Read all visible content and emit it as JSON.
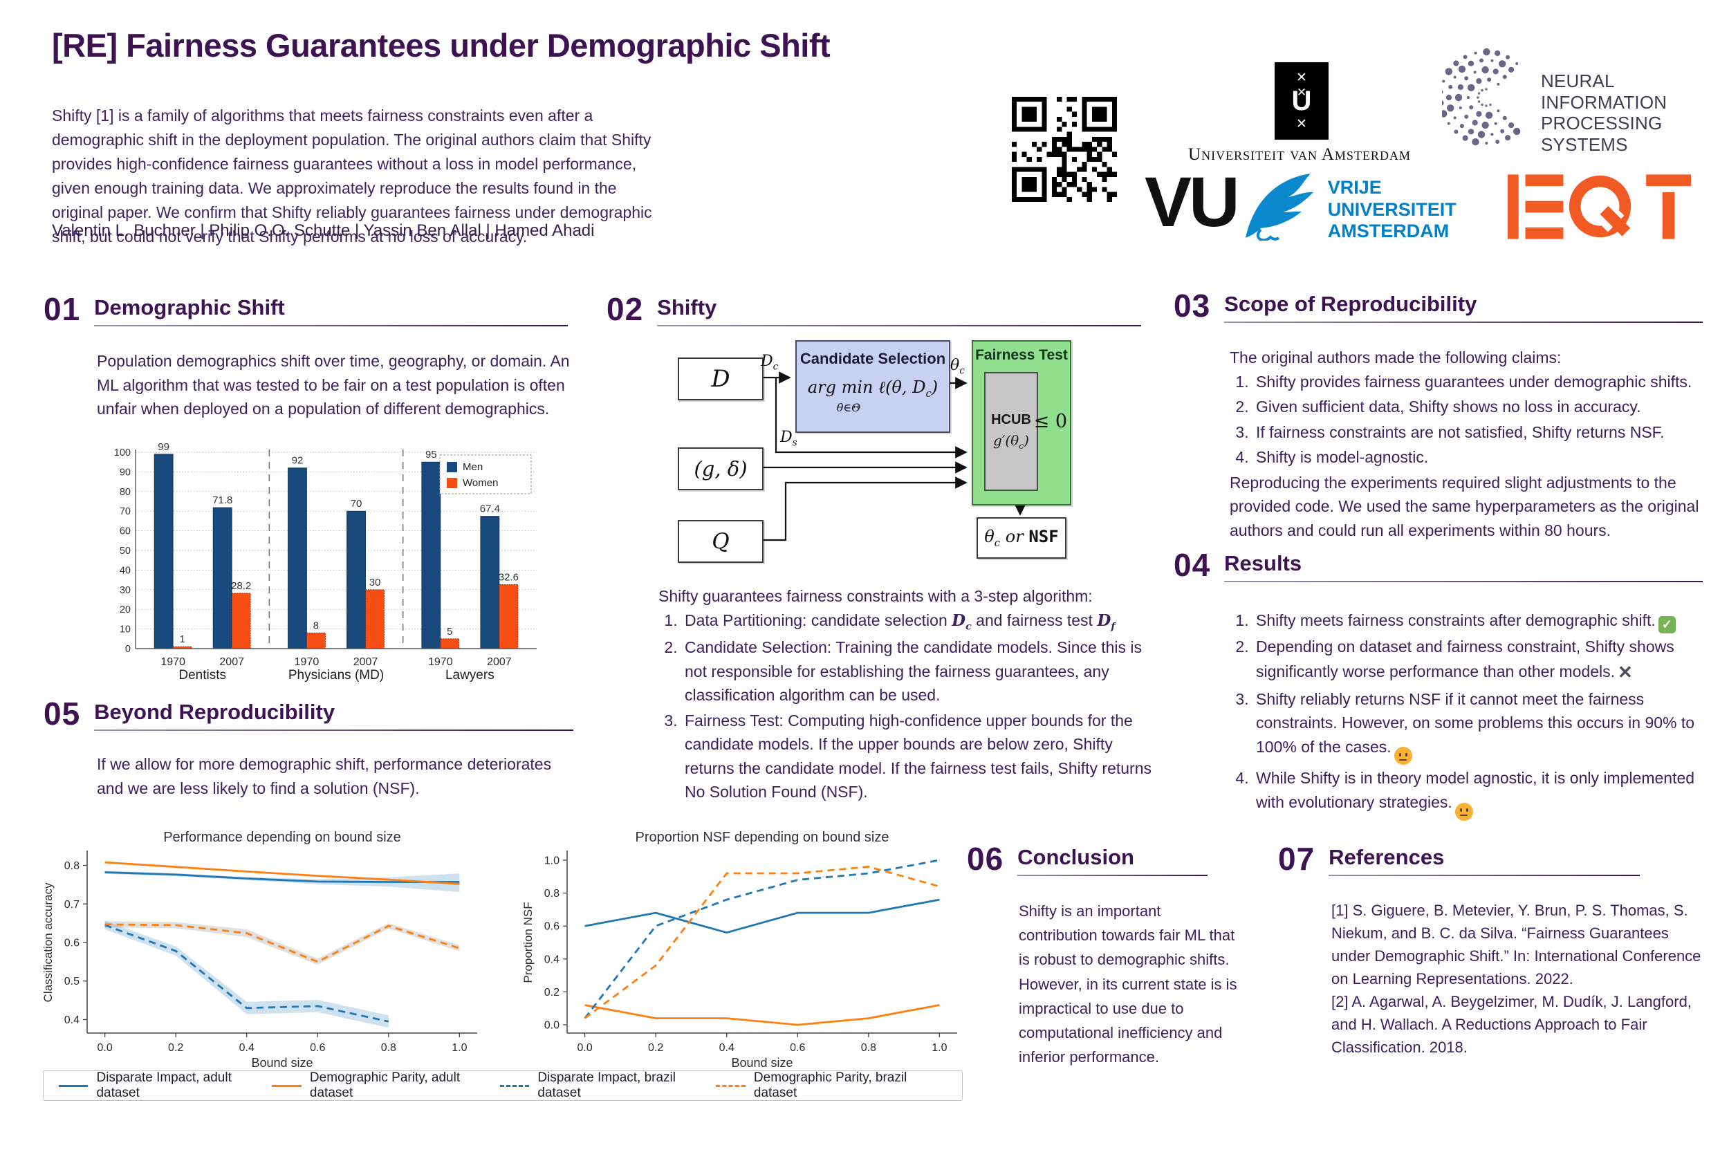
{
  "header": {
    "title": "[RE] Fairness Guarantees under Demographic Shift",
    "abstract": "Shifty [1] is a family of algorithms that meets fairness constraints even after a demographic shift in the deployment population. The original authors claim that Shifty provides high-confidence fairness guarantees without a loss in model performance, given enough training data. We approximately reproduce the results found in the original paper. We confirm that Shifty reliably guarantees fairness under demographic shift, but could not verify that Shifty performs at no loss of accuracy.",
    "authors": "Valentin L. Buchner | Philip O.O. Schutte | Yassin Ben Allal | Hamed Ahadi",
    "logos": {
      "uva_glyph_x": "✕",
      "uva_glyph_u": "U",
      "uva_caption": "Universiteit van Amsterdam",
      "neurips_line1": "NEURAL INFORMATION",
      "neurips_line2": "PROCESSING SYSTEMS",
      "vu_letters": "VU",
      "vu_line1": "VRIJE",
      "vu_line2": "UNIVERSITEIT",
      "vu_line3": "AMSTERDAM",
      "vu_blue": "#0080c9",
      "eqt_orange": "#f15a22",
      "neurips_purple": "#5e5880"
    }
  },
  "accent_color": "#3d1152",
  "sections": {
    "s1": {
      "number": "01",
      "title": "Demographic Shift",
      "body": "Population demographics shift over time, geography, or domain. An ML algorithm that was tested to be fair on a test population  is often unfair when deployed on a population of different demographics."
    },
    "s2": {
      "number": "02",
      "title": "Shifty",
      "intro": "Shifty guarantees fairness constraints with a 3-step algorithm:",
      "item1_pre": "Data Partitioning: candidate selection ",
      "item1_var1": "D",
      "item1_sub1": "c",
      "item1_mid": " and fairness test ",
      "item1_var2": "D",
      "item1_sub2": "f",
      "item2": "Candidate Selection: Training the candidate models. Since this is not responsible for establishing the fairness guarantees, any classification algorithm can be used.",
      "item3": "Fairness Test: Computing high-confidence upper bounds for the candidate models. If the upper bounds are below zero, Shifty returns the candidate model. If the fairness test fails, Shifty returns No Solution Found (NSF)."
    },
    "s3": {
      "number": "03",
      "title": "Scope of Reproducibility",
      "intro": "The original authors made the following claims:",
      "claims": [
        "Shifty provides fairness guarantees under demographic shifts.",
        "Given sufficient data, Shifty shows no loss in accuracy.",
        "If fairness constraints are not satisfied, Shifty returns NSF.",
        "Shifty is model-agnostic."
      ],
      "outro": "Reproducing the experiments required slight adjustments to the provided code. We used the same hyperparameters as the original authors and could run all experiments within 80 hours."
    },
    "s4": {
      "number": "04",
      "title": "Results",
      "items": [
        {
          "text": "Shifty meets fairness constraints after demographic shift.",
          "icon": "check"
        },
        {
          "text": "Depending on dataset and fairness constraint, Shifty shows significantly worse performance than other models.",
          "icon": "cross"
        },
        {
          "text": "Shifty reliably returns NSF if it cannot meet the fairness constraints. However, on some problems this occurs in 90% to 100% of the cases.",
          "icon": "neutral"
        },
        {
          "text": "While Shifty is in theory model agnostic, it is only implemented with evolutionary strategies.",
          "icon": "neutral"
        }
      ],
      "icons": {
        "check": "✓",
        "cross": "✕"
      }
    },
    "s5": {
      "number": "05",
      "title": "Beyond Reproducibility",
      "body": "If we allow for more demographic shift, performance deteriorates and we are less likely to find a solution (NSF)."
    },
    "s6": {
      "number": "06",
      "title": "Conclusion",
      "body": "Shifty is an important contribution towards fair ML that is robust to demographic shifts. However, in its current state is is impractical to use due to computational inefficiency and inferior performance."
    },
    "s7": {
      "number": "07",
      "title": "References",
      "ref1": "[1] S. Giguere, B. Metevier, Y. Brun, P. S. Thomas, S. Niekum, and B. C. da Silva. “Fairness Guarantees under Demographic Shift.” In: International Conference on Learning Representations. 2022.",
      "ref2": "[2] A. Agarwal, A. Beygelzimer, M. Dudík, J. Langford, and H. Wallach. A Reductions Approach to Fair Classification. 2018."
    }
  },
  "diagram": {
    "input_d": "D",
    "input_gdelta": "(g, δ)",
    "input_q": "Q",
    "label_dc_main": "D",
    "label_dc_sub": "c",
    "label_ds_main": "D",
    "label_ds_sub": "s",
    "label_thetac_main": "θ",
    "label_thetac_sub": "c",
    "cs_title": "Candidate Selection",
    "cs_formula_pre": "arg min ℓ(θ, D",
    "cs_formula_sub": "c",
    "cs_formula_post": ")",
    "cs_under": "θ∈Θ",
    "ft_title": "Fairness Test",
    "hcub": "HCUB",
    "hcub_g_pre": "g′(θ",
    "hcub_g_sub": "c",
    "hcub_g_post": ")",
    "leq": "≤ 0",
    "out_theta": "θ",
    "out_theta_sub": "c",
    "out_mid": " or ",
    "out_nsf": "NSF"
  },
  "chart_data": [
    {
      "type": "bar",
      "title": "",
      "group_labels": [
        "Dentists",
        "Physicians (MD)",
        "Lawyers"
      ],
      "x_labels": [
        "1970",
        "2007",
        "1970",
        "2007",
        "1970",
        "2007"
      ],
      "series": [
        {
          "name": "Men",
          "color": "#17497c",
          "values": [
            99,
            71.8,
            92,
            70,
            95,
            67.4
          ]
        },
        {
          "name": "Women",
          "color": "#f74e14",
          "values": [
            1,
            28.2,
            8,
            30,
            5,
            32.6
          ]
        }
      ],
      "value_labels": [
        "99",
        "71.8",
        "92",
        "70",
        "95",
        "67.4",
        "1",
        "28.2",
        "8",
        "30",
        "5",
        "32.6"
      ],
      "ylim": [
        0,
        100
      ],
      "yticks": [
        0,
        10,
        20,
        30,
        40,
        50,
        60,
        70,
        80,
        90,
        100
      ],
      "grid": "horizontal-dotted",
      "legend_position": "top-right"
    },
    {
      "type": "line",
      "title": "Performance depending on bound size",
      "xlabel": "Bound size",
      "ylabel": "Classification accuracy",
      "x": [
        0.0,
        0.2,
        0.4,
        0.6,
        0.8,
        1.0
      ],
      "xticks": [
        0.0,
        0.2,
        0.4,
        0.6,
        0.8,
        1.0
      ],
      "ylim": [
        0.365,
        0.835
      ],
      "yticks": [
        0.4,
        0.5,
        0.6,
        0.7,
        0.8
      ],
      "series": [
        {
          "name": "Disparate Impact, adult dataset",
          "style": "solid",
          "color": "#1f77b4",
          "values": [
            0.782,
            0.776,
            0.766,
            0.758,
            0.757,
            0.757
          ]
        },
        {
          "name": "Demographic Parity, adult dataset",
          "style": "solid",
          "color": "#ff7f0e",
          "values": [
            0.808,
            0.796,
            0.784,
            0.773,
            0.763,
            0.752
          ]
        },
        {
          "name": "Disparate Impact, brazil dataset",
          "style": "dashed",
          "color": "#1f77b4",
          "x": [
            0.0,
            0.2,
            0.4,
            0.6,
            0.8
          ],
          "values": [
            0.645,
            0.578,
            0.43,
            0.435,
            0.395
          ]
        },
        {
          "name": "Demographic Parity, brazil dataset",
          "style": "dashed",
          "color": "#ff7f0e",
          "values": [
            0.647,
            0.645,
            0.624,
            0.55,
            0.643,
            0.585
          ]
        }
      ],
      "bands": [
        {
          "series": 0,
          "upper": [
            0.786,
            0.78,
            0.77,
            0.764,
            0.769,
            0.779
          ],
          "lower": [
            0.778,
            0.772,
            0.762,
            0.751,
            0.745,
            0.731
          ],
          "color": "rgba(31,119,180,0.22)"
        },
        {
          "series": 2,
          "upper": [
            0.656,
            0.59,
            0.446,
            0.451,
            0.411
          ],
          "lower": [
            0.634,
            0.566,
            0.414,
            0.419,
            0.379
          ],
          "color": "rgba(31,119,180,0.22)"
        },
        {
          "series": 3,
          "upper": [
            0.655,
            0.653,
            0.634,
            0.558,
            0.65,
            0.593
          ],
          "lower": [
            0.639,
            0.637,
            0.614,
            0.542,
            0.636,
            0.577
          ],
          "color": "rgba(130,130,130,0.25)"
        }
      ]
    },
    {
      "type": "line",
      "title": "Proportion NSF depending on bound size",
      "xlabel": "Bound size",
      "ylabel": "Proportion NSF",
      "x": [
        0.0,
        0.2,
        0.4,
        0.6,
        0.8,
        1.0
      ],
      "xticks": [
        0.0,
        0.2,
        0.4,
        0.6,
        0.8,
        1.0
      ],
      "ylim": [
        -0.05,
        1.05
      ],
      "yticks": [
        0.0,
        0.2,
        0.4,
        0.6,
        0.8,
        1.0
      ],
      "series": [
        {
          "name": "Disparate Impact, adult dataset",
          "style": "solid",
          "color": "#1f77b4",
          "values": [
            0.6,
            0.68,
            0.56,
            0.68,
            0.68,
            0.76
          ]
        },
        {
          "name": "Demographic Parity, adult dataset",
          "style": "solid",
          "color": "#ff7f0e",
          "values": [
            0.12,
            0.04,
            0.04,
            0.0,
            0.04,
            0.12
          ]
        },
        {
          "name": "Disparate Impact, brazil dataset",
          "style": "dashed",
          "color": "#1f77b4",
          "values": [
            0.04,
            0.6,
            0.76,
            0.88,
            0.92,
            1.0
          ]
        },
        {
          "name": "Demographic Parity, brazil dataset",
          "style": "dashed",
          "color": "#ff7f0e",
          "values": [
            0.04,
            0.36,
            0.92,
            0.92,
            0.96,
            0.84
          ]
        }
      ],
      "bands": []
    }
  ],
  "chart_legend": [
    {
      "label": "Disparate Impact, adult dataset",
      "style": "solid",
      "color": "#1f77b4"
    },
    {
      "label": "Demographic Parity, adult dataset",
      "style": "solid",
      "color": "#ff7f0e"
    },
    {
      "label": "Disparate Impact, brazil dataset",
      "style": "dashed",
      "color": "#1f77b4"
    },
    {
      "label": "Demographic Parity, brazil dataset",
      "style": "dashed",
      "color": "#ff7f0e"
    }
  ]
}
